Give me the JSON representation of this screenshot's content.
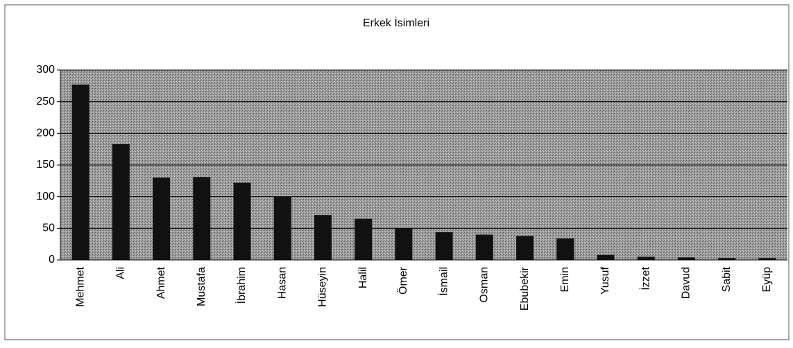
{
  "chart_data": {
    "type": "bar",
    "title": "Erkek İsimleri",
    "categories": [
      "Mehmet",
      "Ali",
      "Ahmet",
      "Mustafa",
      "İbrahim",
      "Hasan",
      "Hüseyin",
      "Halil",
      "Ömer",
      "İsmail",
      "Osman",
      "Ebubekir",
      "Emin",
      "Yusuf",
      "İzzet",
      "Davud",
      "Sabit",
      "Eyüp"
    ],
    "values": [
      277,
      183,
      130,
      131,
      122,
      100,
      71,
      65,
      50,
      44,
      40,
      38,
      34,
      8,
      5,
      4,
      3,
      3
    ],
    "color": "#111111",
    "ylim": [
      0,
      300
    ],
    "yticks": [
      0,
      50,
      100,
      150,
      200,
      250,
      300
    ],
    "grid": true
  }
}
